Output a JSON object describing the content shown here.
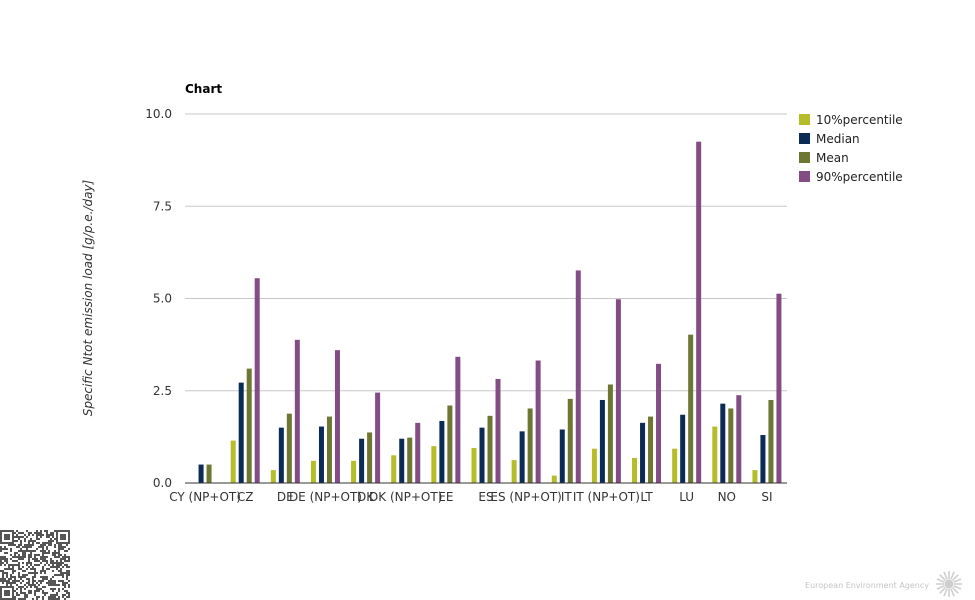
{
  "chart_data": {
    "type": "bar",
    "title": "Chart",
    "ylabel": "Specific Ntot emission load [g/p.e./day]",
    "ylim": [
      0,
      10
    ],
    "yticks": [
      "0.0",
      "2.5",
      "5.0",
      "7.5",
      "10.0"
    ],
    "grid": true,
    "legend_position": "right",
    "categories": [
      "CY (NP+OT)",
      "CZ",
      "DE",
      "DE (NP+OT)",
      "DK",
      "DK (NP+OT)",
      "EE",
      "ES",
      "ES (NP+OT)",
      "IT",
      "IT (NP+OT)",
      "LT",
      "LU",
      "NO",
      "SI"
    ],
    "series": [
      {
        "name": "10%percentile",
        "color": "#b5bd2a",
        "values": [
          null,
          1.15,
          0.35,
          0.6,
          0.6,
          0.75,
          1.0,
          0.95,
          0.62,
          0.2,
          0.93,
          0.68,
          0.93,
          1.53,
          0.35
        ]
      },
      {
        "name": "Median",
        "color": "#0a2b55",
        "values": [
          0.5,
          2.72,
          1.5,
          1.53,
          1.2,
          1.2,
          1.68,
          1.5,
          1.4,
          1.45,
          2.25,
          1.63,
          1.85,
          2.15,
          1.3
        ]
      },
      {
        "name": "Mean",
        "color": "#6d7731",
        "values": [
          0.5,
          3.1,
          1.88,
          1.8,
          1.37,
          1.23,
          2.1,
          1.82,
          2.02,
          2.28,
          2.67,
          1.8,
          4.02,
          2.02,
          2.25
        ]
      },
      {
        "name": "90%percentile",
        "color": "#844c84",
        "values": [
          null,
          5.55,
          3.88,
          3.6,
          2.45,
          1.63,
          3.42,
          2.82,
          3.32,
          5.76,
          4.98,
          3.23,
          9.25,
          2.38,
          5.13
        ]
      }
    ]
  },
  "footer": {
    "agency": "European Environment Agency"
  },
  "icons": {
    "qr": "qr-code-icon",
    "logo": "eea-sun-logo-icon"
  }
}
